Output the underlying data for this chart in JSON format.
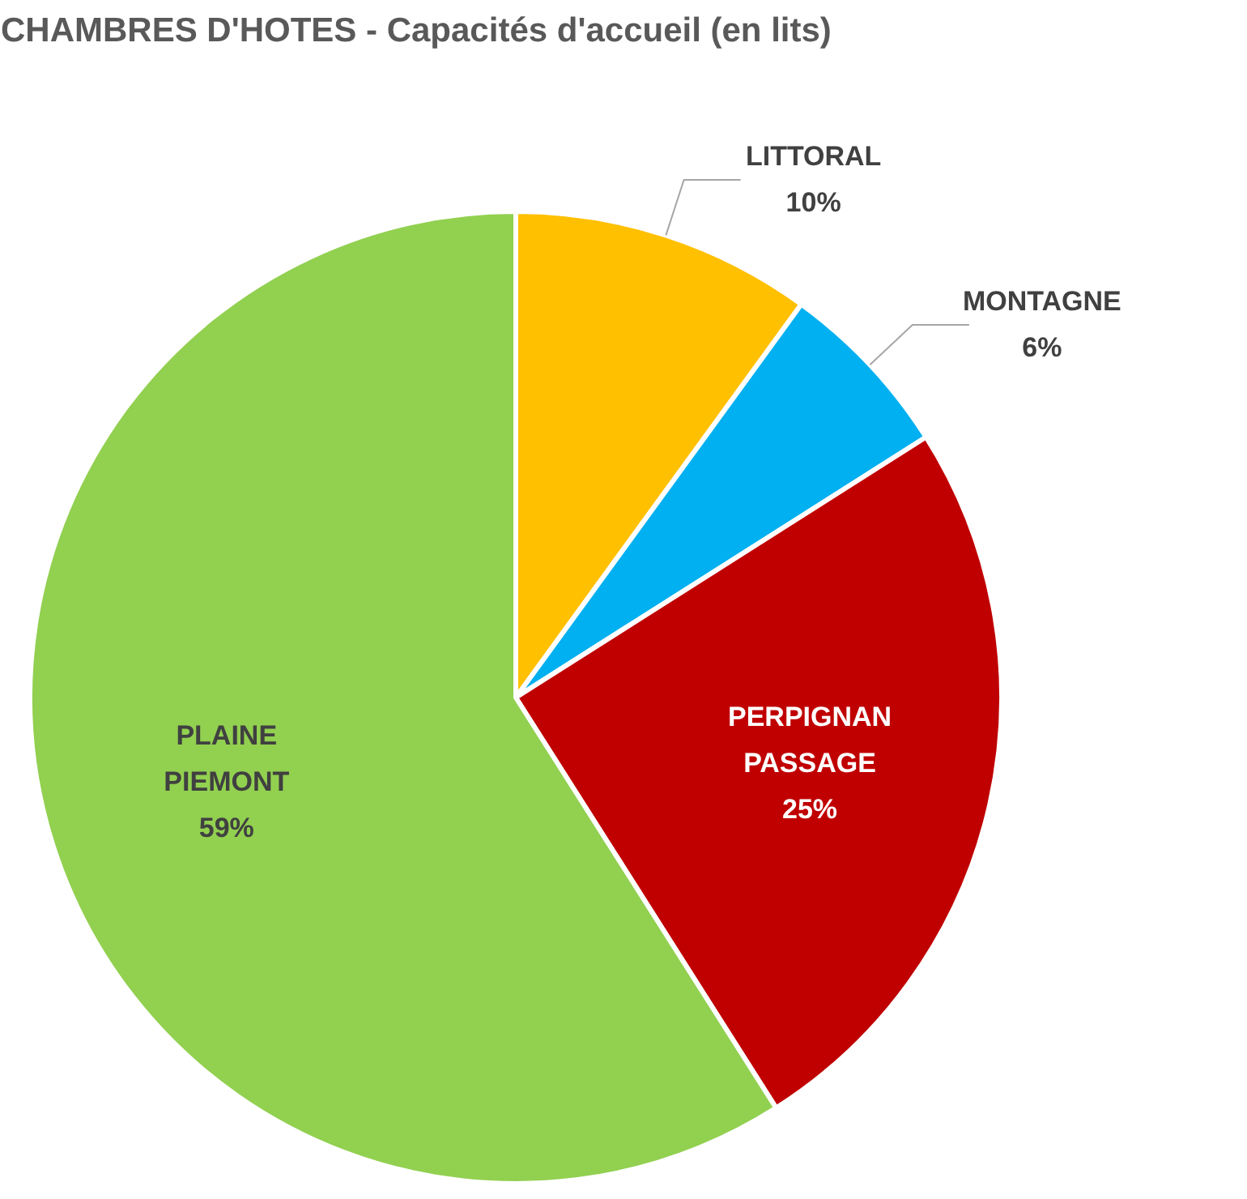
{
  "chart_data": {
    "type": "pie",
    "title": "CHAMBRES D'HOTES - Capacités d'accueil (en lits)",
    "categories": [
      "LITTORAL",
      "MONTAGNE",
      "PERPIGNAN PASSAGE",
      "PLAINE PIEMONT"
    ],
    "values": [
      10,
      6,
      25,
      59
    ],
    "colors": [
      "#ffc000",
      "#00b0f0",
      "#c00000",
      "#92d050"
    ],
    "value_labels": [
      "10%",
      "6%",
      "25%",
      "59%"
    ],
    "legend": false
  }
}
